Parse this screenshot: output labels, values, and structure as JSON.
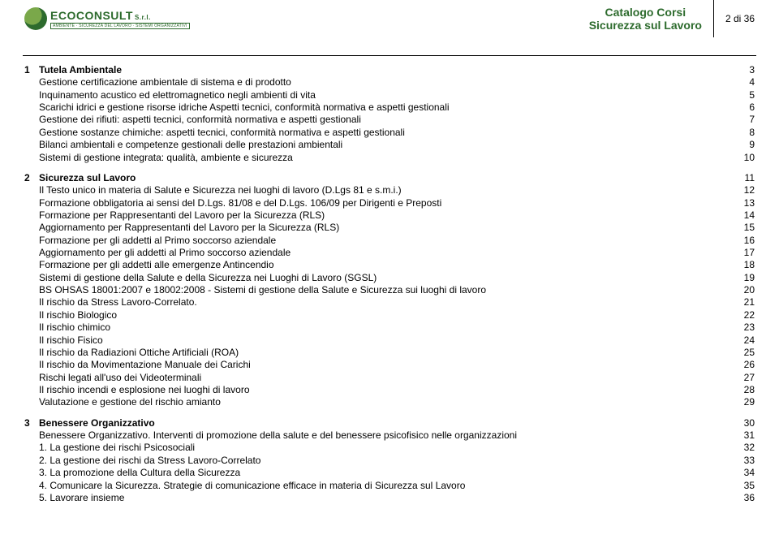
{
  "header": {
    "brand": "ECOCONSULT",
    "srl": "S.r.l.",
    "tagline": "AMBIENTE · SICUREZZA DEL LAVORO · SISTEMI ORGANIZZATIVI",
    "title_line1": "Catalogo Corsi",
    "title_line2": "Sicurezza sul Lavoro",
    "page_indicator": "2 di 36"
  },
  "colors": {
    "brand_green": "#2d6b2d",
    "text": "#000000",
    "background": "#ffffff"
  },
  "typography": {
    "body_fontsize_pt": 9,
    "header_title_fontsize_pt": 11,
    "font_family": "Arial"
  },
  "toc": [
    {
      "num": "1",
      "heading": "Tutela Ambientale",
      "page": "3",
      "items": [
        {
          "label": "Gestione certificazione ambientale di sistema e di prodotto",
          "page": "4"
        },
        {
          "label": "Inquinamento acustico ed elettromagnetico negli ambienti di vita",
          "page": "5"
        },
        {
          "label": "Scarichi idrici e gestione risorse idriche    Aspetti tecnici, conformità normativa e aspetti gestionali",
          "page": "6"
        },
        {
          "label": "Gestione dei rifiuti: aspetti tecnici, conformità normativa e aspetti gestionali",
          "page": "7"
        },
        {
          "label": "Gestione sostanze chimiche: aspetti tecnici, conformità normativa e aspetti gestionali",
          "page": "8"
        },
        {
          "label": "Bilanci ambientali e competenze gestionali delle prestazioni ambientali",
          "page": "9"
        },
        {
          "label": "Sistemi di gestione integrata: qualità, ambiente e sicurezza",
          "page": "10"
        }
      ]
    },
    {
      "num": "2",
      "heading": "Sicurezza sul Lavoro",
      "page": "11",
      "items": [
        {
          "label": "Il Testo unico in materia di Salute e Sicurezza  nei luoghi di lavoro (D.Lgs 81 e s.m.i.)",
          "page": "12"
        },
        {
          "label": "Formazione obbligatoria ai sensi del D.Lgs. 81/08 e del D.Lgs. 106/09     per Dirigenti e Preposti",
          "page": "13"
        },
        {
          "label": "Formazione per Rappresentanti del Lavoro per la Sicurezza (RLS)",
          "page": "14"
        },
        {
          "label": "Aggiornamento per Rappresentanti del Lavoro per la Sicurezza (RLS)",
          "page": "15"
        },
        {
          "label": "Formazione per gli addetti al Primo soccorso aziendale",
          "page": "16"
        },
        {
          "label": "Aggiornamento per gli addetti al Primo soccorso aziendale",
          "page": "17"
        },
        {
          "label": "Formazione per gli addetti alle emergenze Antincendio",
          "page": "18"
        },
        {
          "label": "Sistemi di gestione della Salute e della Sicurezza nei Luoghi di Lavoro (SGSL)",
          "page": "19"
        },
        {
          "label": "BS OHSAS 18001:2007 e 18002:2008 - Sistemi di gestione della Salute e Sicurezza sui luoghi di lavoro",
          "page": "20"
        },
        {
          "label": "Il rischio da Stress Lavoro-Correlato.",
          "page": "21"
        },
        {
          "label": "Il rischio Biologico",
          "page": "22"
        },
        {
          "label": "Il rischio chimico",
          "page": "23"
        },
        {
          "label": "Il rischio Fisico",
          "page": "24"
        },
        {
          "label": "Il rischio da Radiazioni Ottiche Artificiali (ROA)",
          "page": "25"
        },
        {
          "label": "Il rischio da Movimentazione Manuale dei Carichi",
          "page": "26"
        },
        {
          "label": "Rischi legati all'uso dei Videoterminali",
          "page": "27"
        },
        {
          "label": "Il rischio incendi e esplosione nei luoghi di lavoro",
          "page": "28"
        },
        {
          "label": "Valutazione e gestione del rischio amianto",
          "page": "29"
        }
      ]
    },
    {
      "num": "3",
      "heading": "Benessere Organizzativo",
      "page": "30",
      "items": [
        {
          "label": "Benessere Organizzativo. Interventi di promozione della salute e del benessere psicofisico nelle organizzazioni",
          "page": "31"
        },
        {
          "label": "1. La gestione dei rischi Psicosociali",
          "page": "32"
        },
        {
          "label": "2. La gestione dei rischi da Stress Lavoro-Correlato",
          "page": "33"
        },
        {
          "label": "3. La promozione della Cultura della Sicurezza",
          "page": "34"
        },
        {
          "label": "4. Comunicare la Sicurezza. Strategie di comunicazione efficace in materia di Sicurezza sul Lavoro",
          "page": "35"
        },
        {
          "label": "5. Lavorare insieme",
          "page": "36"
        }
      ]
    }
  ]
}
